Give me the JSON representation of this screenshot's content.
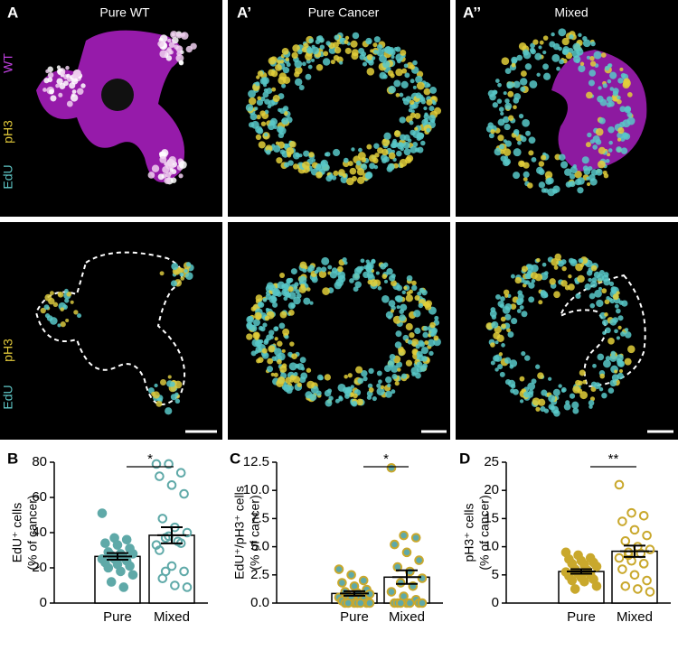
{
  "panels": [
    {
      "letter": "A",
      "title": "Pure WT"
    },
    {
      "letter": "A’",
      "title": "Pure Cancer"
    },
    {
      "letter": "A’’",
      "title": "Mixed"
    }
  ],
  "channels": {
    "top": [
      "EdU",
      "pH3",
      "WT"
    ],
    "bottom": [
      "EdU",
      "pH3"
    ]
  },
  "chart_data": [
    {
      "type": "bar",
      "panel_label": "B",
      "ylabel": [
        "EdU⁺ cells",
        "(% of cancer)"
      ],
      "categories": [
        "Pure",
        "Mixed"
      ],
      "values": [
        26.5,
        38.5
      ],
      "errors": [
        1.9,
        4.6
      ],
      "annotation": "*",
      "points": [
        [
          51,
          37,
          36,
          34,
          33,
          31,
          29,
          28,
          28,
          27,
          26,
          25,
          25,
          24,
          23,
          22,
          21,
          20,
          18,
          16,
          12,
          9
        ],
        [
          79,
          79,
          74,
          72,
          67,
          62,
          48,
          43,
          40,
          37,
          35,
          33,
          38,
          34,
          30,
          21,
          18,
          14,
          10,
          9,
          18
        ]
      ],
      "markers": [
        {
          "fill": "#5fa9a8",
          "stroke": "#5fa9a8"
        },
        {
          "fill": "none",
          "stroke": "#5fa9a8"
        }
      ],
      "ylim": [
        0,
        80
      ],
      "yticks": [
        0,
        20,
        40,
        60,
        80
      ]
    },
    {
      "type": "bar",
      "panel_label": "C",
      "ylabel": [
        "EdU⁺/pH3⁺ cells",
        "(% of cancer)"
      ],
      "categories": [
        "Pure",
        "Mixed"
      ],
      "values": [
        0.85,
        2.3
      ],
      "errors": [
        0.2,
        0.6
      ],
      "annotation": "*",
      "points": [
        [
          3.0,
          2.5,
          2.0,
          1.8,
          1.5,
          1.2,
          1.0,
          0.9,
          0.8,
          0.6,
          0.5,
          0.5,
          0.4,
          0.3,
          0.2,
          0,
          0,
          0,
          0,
          0,
          0,
          0
        ],
        [
          12,
          6,
          5.8,
          5.2,
          4.5,
          3.8,
          3.2,
          2.8,
          2.2,
          1.8,
          1.5,
          1.0,
          0.6,
          0.3,
          0,
          0,
          0,
          0,
          0,
          0,
          0
        ]
      ],
      "markers": [
        {
          "fill": "#5fa9a8",
          "stroke": "#c9a82c"
        },
        {
          "fill": "#5fa9a8",
          "stroke": "#c9a82c"
        }
      ],
      "ylim": [
        0,
        12.5
      ],
      "yticks": [
        {
          "value": 0,
          "label": "0.0"
        },
        2.5,
        {
          "value": 5,
          "label": "5.0"
        },
        7.5,
        {
          "value": 10,
          "label": "10.0"
        },
        12.5
      ]
    },
    {
      "type": "bar",
      "panel_label": "D",
      "ylabel": [
        "pH3⁺ cells",
        "(% of cancer)"
      ],
      "categories": [
        "Pure",
        "Mixed"
      ],
      "values": [
        5.6,
        9.2
      ],
      "errors": [
        0.4,
        1.0
      ],
      "annotation": "**",
      "points": [
        [
          9,
          8.5,
          8,
          7.8,
          7.5,
          7.2,
          7,
          6.8,
          6.5,
          6,
          5.8,
          5.5,
          5.2,
          5,
          4.8,
          4.5,
          4.2,
          4,
          3.8,
          3,
          2.5,
          5.6
        ],
        [
          21,
          16,
          15.5,
          14.5,
          13,
          12,
          11,
          10,
          9.5,
          9,
          8.8,
          8,
          7.5,
          7,
          6,
          5,
          4,
          3,
          2.5,
          2,
          8.5
        ]
      ],
      "markers": [
        {
          "fill": "#c9a82c",
          "stroke": "#c9a82c"
        },
        {
          "fill": "none",
          "stroke": "#c9a82c"
        }
      ],
      "ylim": [
        0,
        25
      ],
      "yticks": [
        0,
        5,
        10,
        15,
        20,
        25
      ]
    }
  ]
}
